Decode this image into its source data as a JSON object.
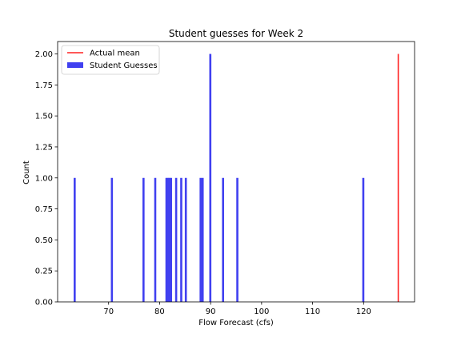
{
  "chart_data": {
    "type": "bar",
    "title": "Student guesses for Week 2",
    "xlabel": "Flow Forecast (cfs)",
    "ylabel": "Count",
    "xlim": [
      60.0,
      130.0
    ],
    "ylim": [
      0.0,
      2.1
    ],
    "xticks": [
      70,
      80,
      90,
      100,
      110,
      120
    ],
    "xtick_labels": [
      "70",
      "80",
      "90",
      "100",
      "110",
      "120"
    ],
    "yticks": [
      0.0,
      0.25,
      0.5,
      0.75,
      1.0,
      1.25,
      1.5,
      1.75,
      2.0
    ],
    "ytick_labels": [
      "0.00",
      "0.25",
      "0.50",
      "0.75",
      "1.00",
      "1.25",
      "1.50",
      "1.75",
      "2.00"
    ],
    "grid": false,
    "legend_position": "upper-left",
    "series": [
      {
        "name": "Student Guesses",
        "color": "#4040f0",
        "kind": "histogram",
        "bin_width": 0.32,
        "bins": [
          {
            "x": 63.3,
            "count": 1
          },
          {
            "x": 70.6,
            "count": 1
          },
          {
            "x": 76.8,
            "count": 1
          },
          {
            "x": 79.1,
            "count": 1
          },
          {
            "x": 81.3,
            "count": 1
          },
          {
            "x": 81.6,
            "count": 1
          },
          {
            "x": 81.9,
            "count": 1
          },
          {
            "x": 82.2,
            "count": 1
          },
          {
            "x": 83.2,
            "count": 1
          },
          {
            "x": 84.2,
            "count": 1
          },
          {
            "x": 85.1,
            "count": 1
          },
          {
            "x": 88.0,
            "count": 1
          },
          {
            "x": 88.4,
            "count": 1
          },
          {
            "x": 89.9,
            "count": 2
          },
          {
            "x": 92.4,
            "count": 1
          },
          {
            "x": 95.2,
            "count": 1
          },
          {
            "x": 119.9,
            "count": 1
          }
        ]
      },
      {
        "name": "Actual mean",
        "color": "#ff2020",
        "kind": "vline",
        "x": 126.8,
        "y_range": [
          0,
          2
        ]
      }
    ]
  }
}
